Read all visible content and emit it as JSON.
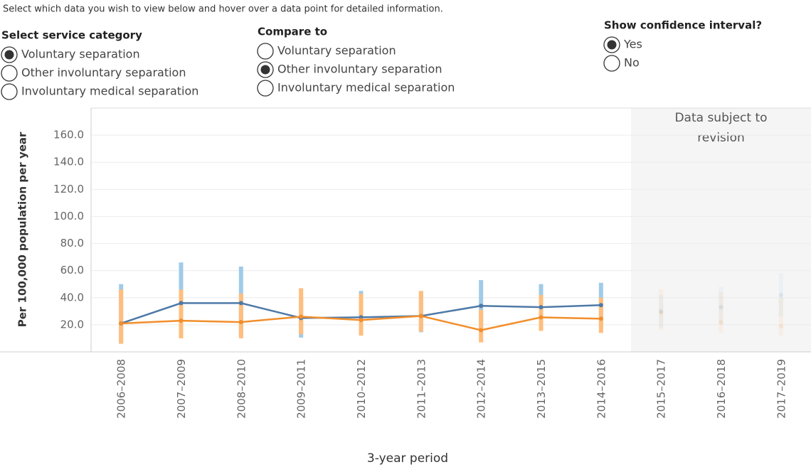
{
  "instructions": "Select which data you wish to view below and hover over a data point for detailed information.",
  "controls": [
    {
      "title": "Select service category",
      "options": [
        "Voluntary separation",
        "Other involuntary separation",
        "Involuntary medical separation"
      ],
      "selected": 0
    },
    {
      "title": "Compare to",
      "options": [
        "Voluntary separation",
        "Other involuntary separation",
        "Involuntary medical separation"
      ],
      "selected": 1
    },
    {
      "title": "Show confidence interval?",
      "options": [
        "Yes",
        "No"
      ],
      "selected": 0
    }
  ],
  "chart_data": {
    "type": "line",
    "x_label": "3-year period",
    "y_label": "Per 100,000 population per year",
    "categories": [
      "2006–2008",
      "2007–2009",
      "2008–2010",
      "2009–2011",
      "2010–2012",
      "2011–2013",
      "2012–2014",
      "2013–2015",
      "2014–2016",
      "2015–2017",
      "2016–2018",
      "2017–2019"
    ],
    "series": [
      {
        "name": "Voluntary separation",
        "color": "#4e79a7",
        "ci_color": "#a0cbe8",
        "values": [
          21,
          36,
          36,
          25,
          25.5,
          26.5,
          34,
          33,
          34.5,
          30,
          33,
          42
        ],
        "lower": [
          6,
          12,
          12,
          10.5,
          14,
          14.5,
          14,
          17,
          18,
          18,
          20,
          26
        ],
        "upper": [
          50,
          66,
          63,
          40,
          45,
          44,
          53,
          50,
          51,
          42,
          48,
          58
        ]
      },
      {
        "name": "Other involuntary separation",
        "color": "#f28e2b",
        "ci_color": "#ffbe7d",
        "values": [
          21,
          23,
          22,
          26,
          23.5,
          26.5,
          16,
          25.5,
          24.5,
          29,
          22,
          19
        ],
        "lower": [
          6,
          10,
          10,
          13,
          12,
          15,
          7,
          15.5,
          14,
          16,
          14,
          12
        ],
        "upper": [
          46,
          46,
          43,
          47,
          43,
          45,
          31,
          42,
          40,
          46,
          44,
          40
        ]
      }
    ],
    "ylim": [
      0,
      180
    ],
    "yticks": [
      {
        "value": 20,
        "label": "20.0"
      },
      {
        "value": 40,
        "label": "40.0"
      },
      {
        "value": 60,
        "label": "60.0"
      },
      {
        "value": 80,
        "label": "80.0"
      },
      {
        "value": 100,
        "label": "100.0"
      },
      {
        "value": 120,
        "label": "120.0"
      },
      {
        "value": 140,
        "label": "140.0"
      },
      {
        "value": 160,
        "label": "160.0"
      }
    ],
    "grid": true,
    "shaded_region": {
      "label": "Data subject to revision",
      "start": "2015–2017"
    }
  }
}
